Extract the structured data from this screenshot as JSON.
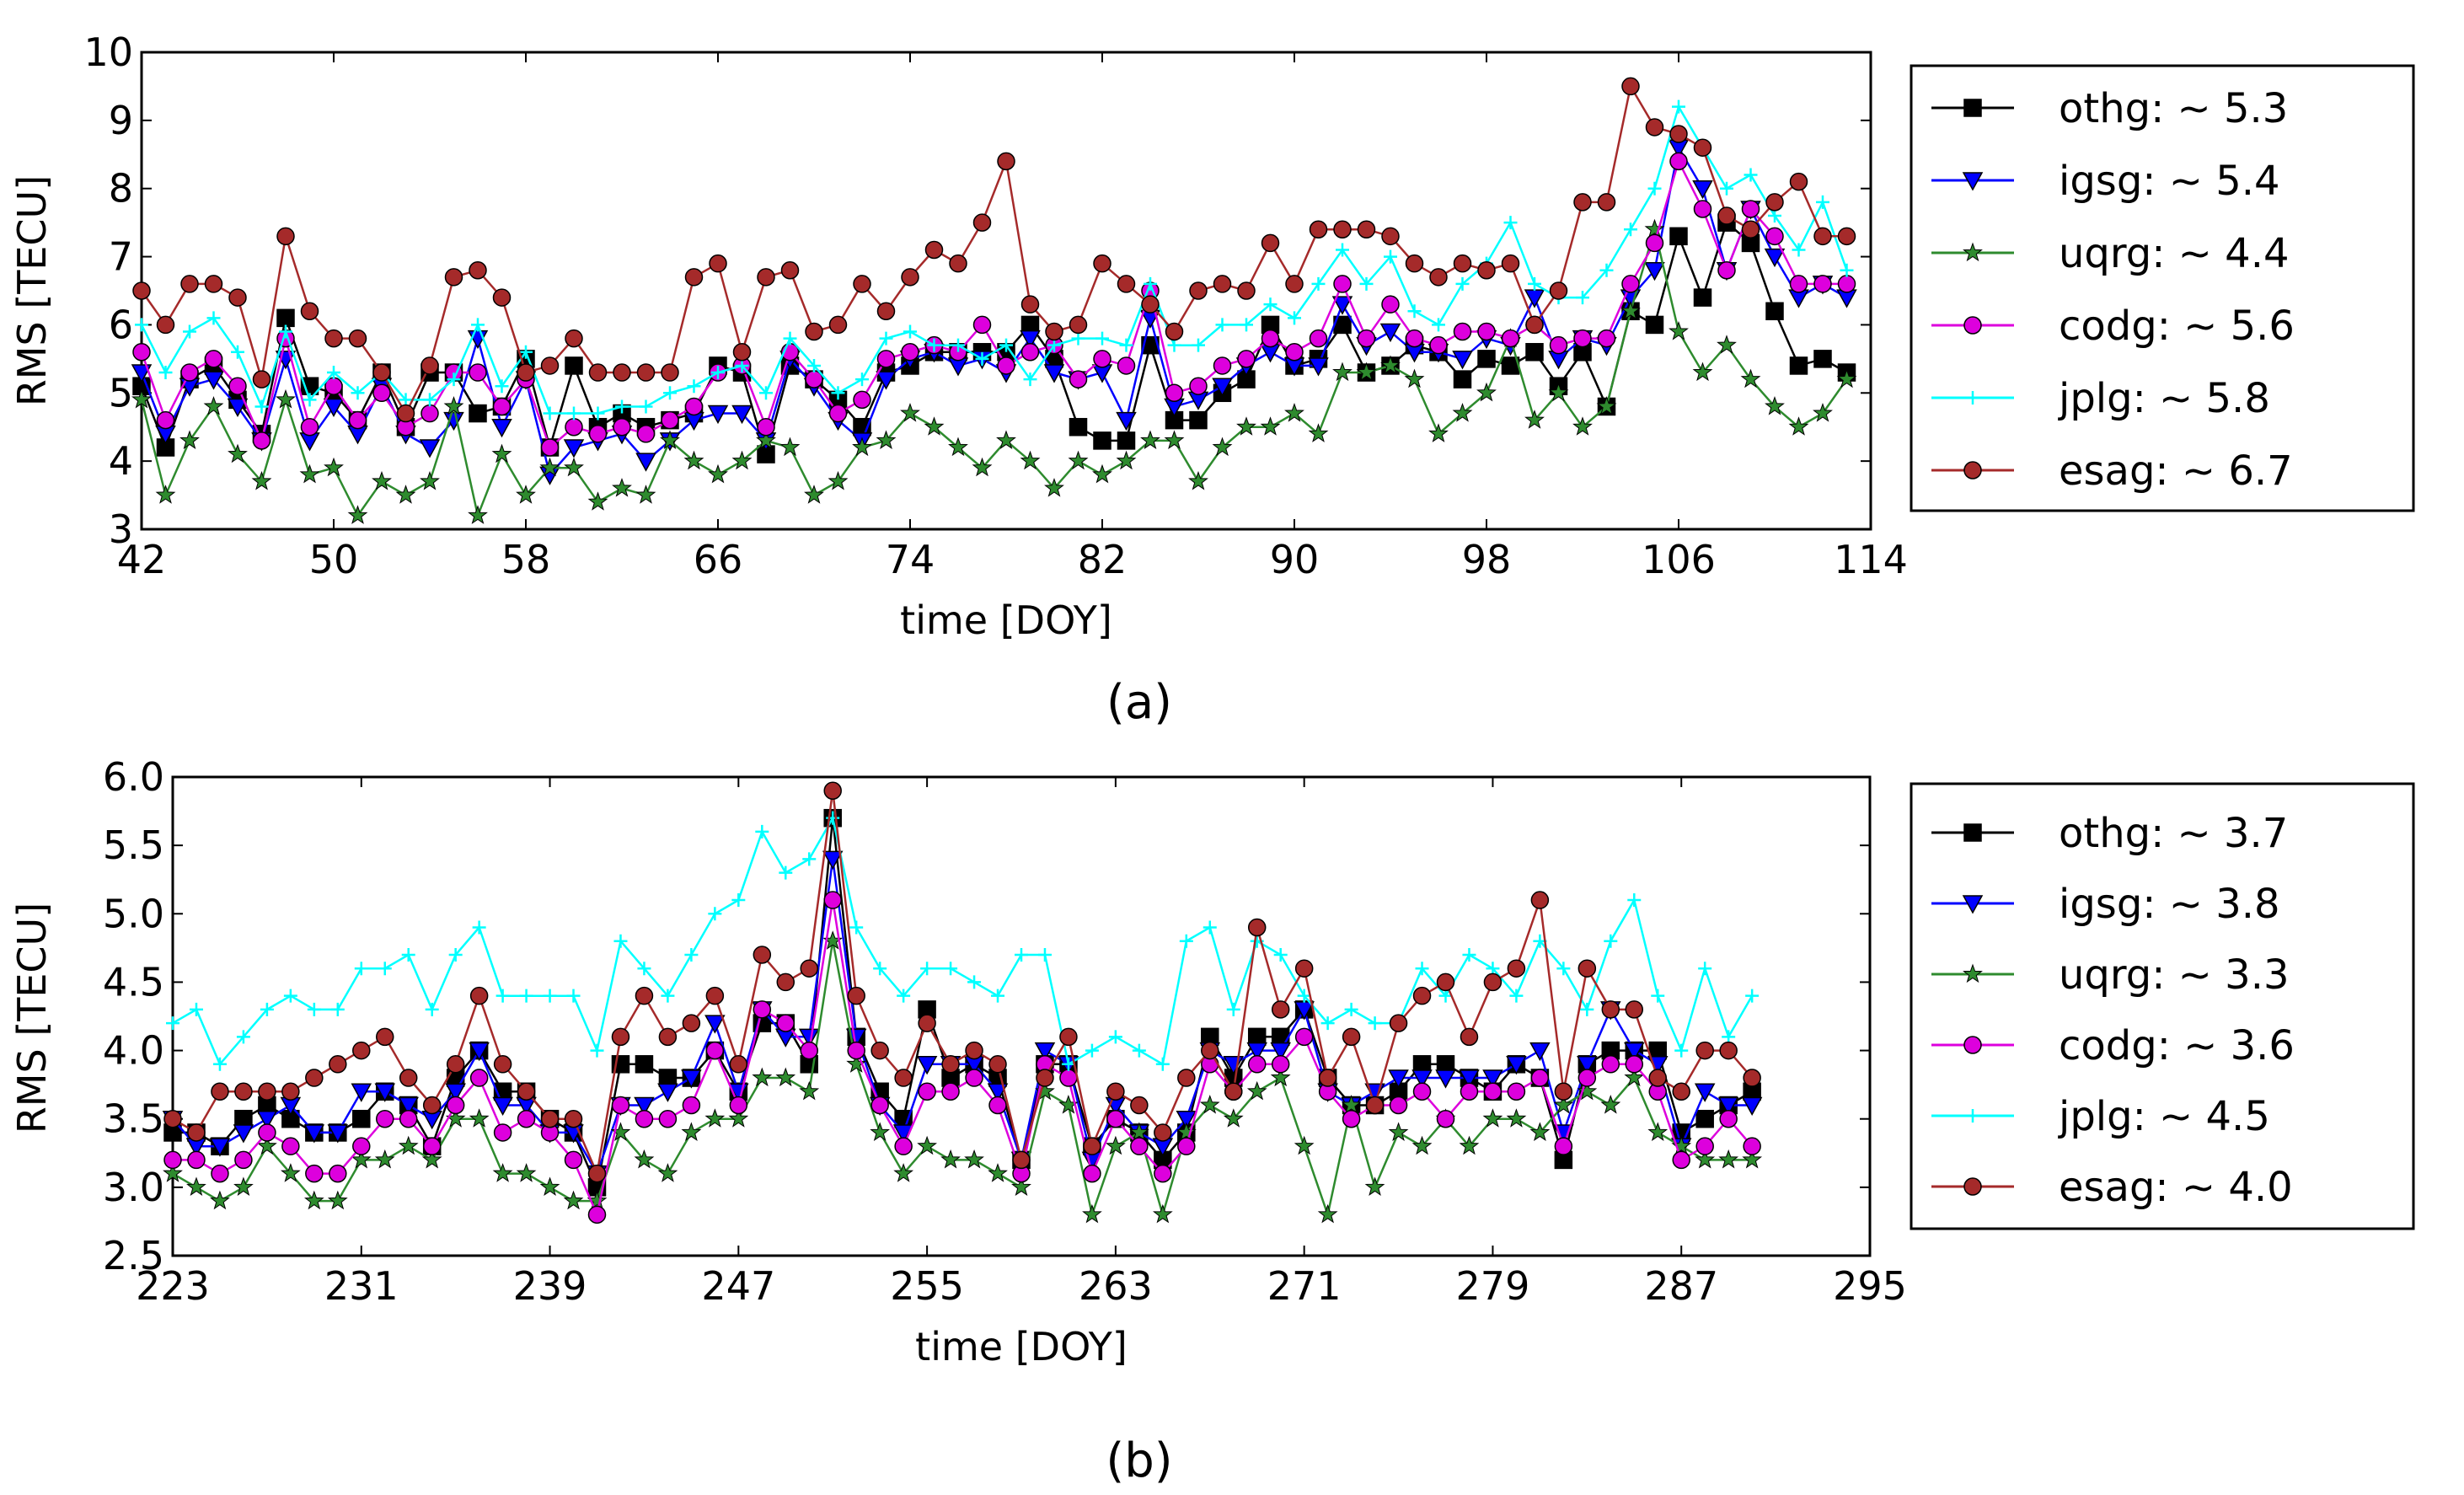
{
  "chart_data": [
    {
      "type": "line",
      "panel_label": "(a)",
      "xlabel": "time [DOY]",
      "ylabel": "RMS [TECU]",
      "xlim": [
        42,
        114
      ],
      "ylim": [
        3,
        10
      ],
      "xticks": [
        "42",
        "50",
        "58",
        "66",
        "74",
        "82",
        "90",
        "98",
        "106",
        "114"
      ],
      "yticks": [
        "3",
        "4",
        "5",
        "6",
        "7",
        "8",
        "9",
        "10"
      ],
      "legend_position": "right-outside",
      "x_start": 42,
      "series": [
        {
          "name": "othg",
          "legend": "othg: ~ 5.3",
          "color": "#000000",
          "marker": "square",
          "values": [
            5.1,
            4.2,
            5.2,
            5.4,
            4.9,
            4.4,
            6.1,
            5.1,
            5.0,
            4.6,
            5.3,
            4.5,
            5.3,
            5.3,
            4.7,
            4.8,
            5.5,
            4.2,
            5.4,
            4.5,
            4.7,
            4.5,
            4.6,
            4.7,
            5.4,
            5.3,
            4.1,
            5.4,
            5.2,
            4.9,
            4.5,
            5.3,
            5.4,
            5.6,
            5.6,
            5.6,
            5.6,
            6.0,
            5.5,
            4.5,
            4.3,
            4.3,
            5.7,
            4.6,
            4.6,
            5.0,
            5.2,
            6.0,
            5.4,
            5.5,
            6.0,
            5.3,
            5.4,
            5.7,
            5.6,
            5.2,
            5.5,
            5.4,
            5.6,
            5.1,
            5.6,
            4.8,
            6.2,
            6.0,
            7.3,
            6.4,
            7.5,
            7.2,
            6.2,
            5.4,
            5.5,
            5.3
          ]
        },
        {
          "name": "igsg",
          "legend": "igsg: ~ 5.4",
          "color": "#0000ff",
          "marker": "triangle",
          "values": [
            5.3,
            4.4,
            5.1,
            5.2,
            4.8,
            4.3,
            5.5,
            4.3,
            4.8,
            4.4,
            5.1,
            4.4,
            4.2,
            4.6,
            5.8,
            4.5,
            5.2,
            3.8,
            4.2,
            4.3,
            4.4,
            4.0,
            4.3,
            4.6,
            4.7,
            4.7,
            4.3,
            5.5,
            5.1,
            4.6,
            4.3,
            5.2,
            5.5,
            5.6,
            5.4,
            5.5,
            5.3,
            5.8,
            5.3,
            5.2,
            5.3,
            4.6,
            6.1,
            4.8,
            4.9,
            5.1,
            5.4,
            5.6,
            5.4,
            5.4,
            6.3,
            5.7,
            5.9,
            5.6,
            5.6,
            5.5,
            5.8,
            5.7,
            6.4,
            5.5,
            5.8,
            5.7,
            6.4,
            6.8,
            8.6,
            8.0,
            6.8,
            7.7,
            7.0,
            6.4,
            6.6,
            6.4
          ]
        },
        {
          "name": "uqrg",
          "legend": "uqrg: ~ 4.4",
          "color": "#2e8b2e",
          "marker": "star",
          "values": [
            4.9,
            3.5,
            4.3,
            4.8,
            4.1,
            3.7,
            4.9,
            3.8,
            3.9,
            3.2,
            3.7,
            3.5,
            3.7,
            4.8,
            3.2,
            4.1,
            3.5,
            3.9,
            3.9,
            3.4,
            3.6,
            3.5,
            4.3,
            4.0,
            3.8,
            4.0,
            4.3,
            4.2,
            3.5,
            3.7,
            4.2,
            4.3,
            4.7,
            4.5,
            4.2,
            3.9,
            4.3,
            4.0,
            3.6,
            4.0,
            3.8,
            4.0,
            4.3,
            4.3,
            3.7,
            4.2,
            4.5,
            4.5,
            4.7,
            4.4,
            5.3,
            5.3,
            5.4,
            5.2,
            4.4,
            4.7,
            5.0,
            5.8,
            4.6,
            5.0,
            4.5,
            4.8,
            6.2,
            7.4,
            5.9,
            5.3,
            5.7,
            5.2,
            4.8,
            4.5,
            4.7,
            5.2
          ]
        },
        {
          "name": "codg",
          "legend": "codg: ~ 5.6",
          "color": "#dd00dd",
          "marker": "circle",
          "values": [
            5.6,
            4.6,
            5.3,
            5.5,
            5.1,
            4.3,
            5.8,
            4.5,
            5.1,
            4.6,
            5.0,
            4.5,
            4.7,
            5.3,
            5.3,
            4.8,
            5.2,
            4.2,
            4.5,
            4.4,
            4.5,
            4.4,
            4.6,
            4.8,
            5.3,
            5.4,
            4.5,
            5.6,
            5.2,
            4.7,
            4.9,
            5.5,
            5.6,
            5.7,
            5.6,
            6.0,
            5.4,
            5.6,
            5.7,
            5.2,
            5.5,
            5.4,
            6.5,
            5.0,
            5.1,
            5.4,
            5.5,
            5.8,
            5.6,
            5.8,
            6.6,
            5.8,
            6.3,
            5.8,
            5.7,
            5.9,
            5.9,
            5.8,
            6.0,
            5.7,
            5.8,
            5.8,
            6.6,
            7.2,
            8.4,
            7.7,
            6.8,
            7.7,
            7.3,
            6.6,
            6.6,
            6.6
          ]
        },
        {
          "name": "jplg",
          "legend": "jplg: ~ 5.8",
          "color": "#00ffff",
          "marker": "plus",
          "values": [
            6.0,
            5.3,
            5.9,
            6.1,
            5.6,
            4.8,
            5.9,
            4.9,
            5.3,
            5.0,
            5.3,
            4.9,
            4.9,
            5.2,
            6.0,
            5.1,
            5.6,
            4.7,
            4.7,
            4.7,
            4.8,
            4.8,
            5.0,
            5.1,
            5.3,
            5.4,
            5.0,
            5.8,
            5.4,
            5.0,
            5.2,
            5.8,
            5.9,
            5.7,
            5.7,
            5.5,
            5.7,
            5.2,
            5.7,
            5.8,
            5.8,
            5.7,
            6.6,
            5.7,
            5.7,
            6.0,
            6.0,
            6.3,
            6.1,
            6.6,
            7.1,
            6.6,
            7.0,
            6.2,
            6.0,
            6.6,
            6.9,
            7.5,
            6.6,
            6.4,
            6.4,
            6.8,
            7.4,
            8.0,
            9.2,
            8.6,
            8.0,
            8.2,
            7.6,
            7.1,
            7.8,
            6.8
          ]
        },
        {
          "name": "esag",
          "legend": "esag: ~ 6.7",
          "color": "#a52a2a",
          "marker": "circle",
          "values": [
            6.5,
            6.0,
            6.6,
            6.6,
            6.4,
            5.2,
            7.3,
            6.2,
            5.8,
            5.8,
            5.3,
            4.7,
            5.4,
            6.7,
            6.8,
            6.4,
            5.3,
            5.4,
            5.8,
            5.3,
            5.3,
            5.3,
            5.3,
            6.7,
            6.9,
            5.6,
            6.7,
            6.8,
            5.9,
            6.0,
            6.6,
            6.2,
            6.7,
            7.1,
            6.9,
            7.5,
            8.4,
            6.3,
            5.9,
            6.0,
            6.9,
            6.6,
            6.3,
            5.9,
            6.5,
            6.6,
            6.5,
            7.2,
            6.6,
            7.4,
            7.4,
            7.4,
            7.3,
            6.9,
            6.7,
            6.9,
            6.8,
            6.9,
            6.0,
            6.5,
            7.8,
            7.8,
            9.5,
            8.9,
            8.8,
            8.6,
            7.6,
            7.4,
            7.8,
            8.1,
            7.3,
            7.3
          ]
        }
      ]
    },
    {
      "type": "line",
      "panel_label": "(b)",
      "xlabel": "time [DOY]",
      "ylabel": "RMS [TECU]",
      "xlim": [
        223,
        295
      ],
      "ylim": [
        2.5,
        6.0
      ],
      "xticks": [
        "223",
        "231",
        "239",
        "247",
        "255",
        "263",
        "271",
        "279",
        "287",
        "295"
      ],
      "yticks": [
        "2.5",
        "3.0",
        "3.5",
        "4.0",
        "4.5",
        "5.0",
        "5.5",
        "6.0"
      ],
      "legend_position": "right-outside",
      "x_start": 223,
      "series": [
        {
          "name": "othg",
          "legend": "othg: ~ 3.7",
          "color": "#000000",
          "marker": "square",
          "values": [
            3.4,
            3.4,
            3.3,
            3.5,
            3.6,
            3.5,
            3.4,
            3.4,
            3.5,
            3.7,
            3.6,
            3.3,
            3.8,
            4.0,
            3.7,
            3.7,
            3.5,
            3.4,
            3.0,
            3.9,
            3.9,
            3.8,
            3.8,
            4.0,
            3.7,
            4.2,
            4.2,
            3.9,
            5.7,
            4.1,
            3.7,
            3.5,
            4.3,
            3.8,
            3.9,
            3.8,
            3.2,
            3.9,
            3.9,
            3.3,
            3.5,
            3.4,
            3.2,
            3.4,
            4.1,
            3.8,
            4.1,
            4.1,
            4.3,
            3.8,
            3.6,
            3.6,
            3.7,
            3.9,
            3.9,
            3.8,
            3.7,
            3.9,
            3.8,
            3.2,
            3.9,
            4.0,
            4.0,
            4.0,
            3.4,
            3.5,
            3.6,
            3.7
          ]
        },
        {
          "name": "igsg",
          "legend": "igsg: ~ 3.8",
          "color": "#0000ff",
          "marker": "triangle",
          "values": [
            3.5,
            3.3,
            3.3,
            3.4,
            3.5,
            3.6,
            3.4,
            3.4,
            3.7,
            3.7,
            3.6,
            3.5,
            3.7,
            4.0,
            3.6,
            3.6,
            3.4,
            3.4,
            3.1,
            3.6,
            3.6,
            3.7,
            3.8,
            4.2,
            3.7,
            4.3,
            4.1,
            4.1,
            5.4,
            4.1,
            3.6,
            3.4,
            3.9,
            3.9,
            3.9,
            3.7,
            3.2,
            4.0,
            3.9,
            3.2,
            3.6,
            3.4,
            3.3,
            3.5,
            4.0,
            3.9,
            4.0,
            4.0,
            4.3,
            3.7,
            3.6,
            3.7,
            3.8,
            3.8,
            3.8,
            3.8,
            3.8,
            3.9,
            4.0,
            3.4,
            3.9,
            4.3,
            4.0,
            3.9,
            3.3,
            3.7,
            3.6,
            3.6
          ]
        },
        {
          "name": "uqrg",
          "legend": "uqrg: ~ 3.3",
          "color": "#2e8b2e",
          "marker": "star",
          "values": [
            3.1,
            3.0,
            2.9,
            3.0,
            3.3,
            3.1,
            2.9,
            2.9,
            3.2,
            3.2,
            3.3,
            3.2,
            3.5,
            3.5,
            3.1,
            3.1,
            3.0,
            2.9,
            2.9,
            3.4,
            3.2,
            3.1,
            3.4,
            3.5,
            3.5,
            3.8,
            3.8,
            3.7,
            4.8,
            3.9,
            3.4,
            3.1,
            3.3,
            3.2,
            3.2,
            3.1,
            3.0,
            3.7,
            3.6,
            2.8,
            3.3,
            3.4,
            2.8,
            3.4,
            3.6,
            3.5,
            3.7,
            3.8,
            3.3,
            2.8,
            3.6,
            3.0,
            3.4,
            3.3,
            3.5,
            3.3,
            3.5,
            3.5,
            3.4,
            3.6,
            3.7,
            3.6,
            3.8,
            3.4,
            3.3,
            3.2,
            3.2,
            3.2
          ]
        },
        {
          "name": "codg",
          "legend": "codg: ~ 3.6",
          "color": "#dd00dd",
          "marker": "circle",
          "values": [
            3.2,
            3.2,
            3.1,
            3.2,
            3.4,
            3.3,
            3.1,
            3.1,
            3.3,
            3.5,
            3.5,
            3.3,
            3.6,
            3.8,
            3.4,
            3.5,
            3.4,
            3.2,
            2.8,
            3.6,
            3.5,
            3.5,
            3.6,
            4.0,
            3.6,
            4.3,
            4.2,
            4.0,
            5.1,
            4.0,
            3.6,
            3.3,
            3.7,
            3.7,
            3.8,
            3.6,
            3.1,
            3.9,
            3.8,
            3.1,
            3.5,
            3.3,
            3.1,
            3.3,
            3.9,
            3.7,
            3.9,
            3.9,
            4.1,
            3.7,
            3.5,
            3.6,
            3.6,
            3.7,
            3.5,
            3.7,
            3.7,
            3.7,
            3.8,
            3.3,
            3.8,
            3.9,
            3.9,
            3.7,
            3.2,
            3.3,
            3.5,
            3.3
          ]
        },
        {
          "name": "jplg",
          "legend": "jplg: ~ 4.5",
          "color": "#00ffff",
          "marker": "plus",
          "values": [
            4.2,
            4.3,
            3.9,
            4.1,
            4.3,
            4.4,
            4.3,
            4.3,
            4.6,
            4.6,
            4.7,
            4.3,
            4.7,
            4.9,
            4.4,
            4.4,
            4.4,
            4.4,
            4.0,
            4.8,
            4.6,
            4.4,
            4.7,
            5.0,
            5.1,
            5.6,
            5.3,
            5.4,
            5.7,
            4.9,
            4.6,
            4.4,
            4.6,
            4.6,
            4.5,
            4.4,
            4.7,
            4.7,
            3.9,
            4.0,
            4.1,
            4.0,
            3.9,
            4.8,
            4.9,
            4.3,
            4.8,
            4.7,
            4.4,
            4.2,
            4.3,
            4.2,
            4.2,
            4.6,
            4.4,
            4.7,
            4.6,
            4.4,
            4.8,
            4.6,
            4.3,
            4.8,
            5.1,
            4.4,
            4.0,
            4.6,
            4.1,
            4.4
          ]
        },
        {
          "name": "esag",
          "legend": "esag: ~ 4.0",
          "color": "#a52a2a",
          "marker": "circle",
          "values": [
            3.5,
            3.4,
            3.7,
            3.7,
            3.7,
            3.7,
            3.8,
            3.9,
            4.0,
            4.1,
            3.8,
            3.6,
            3.9,
            4.4,
            3.9,
            3.7,
            3.5,
            3.5,
            3.1,
            4.1,
            4.4,
            4.1,
            4.2,
            4.4,
            3.9,
            4.7,
            4.5,
            4.6,
            5.9,
            4.4,
            4.0,
            3.8,
            4.2,
            3.9,
            4.0,
            3.9,
            3.2,
            3.8,
            4.1,
            3.3,
            3.7,
            3.6,
            3.4,
            3.8,
            4.0,
            3.7,
            4.9,
            4.3,
            4.6,
            3.8,
            4.1,
            3.6,
            4.2,
            4.4,
            4.5,
            4.1,
            4.5,
            4.6,
            5.1,
            3.7,
            4.6,
            4.3,
            4.3,
            3.8,
            3.7,
            4.0,
            4.0,
            3.8
          ]
        }
      ]
    }
  ]
}
